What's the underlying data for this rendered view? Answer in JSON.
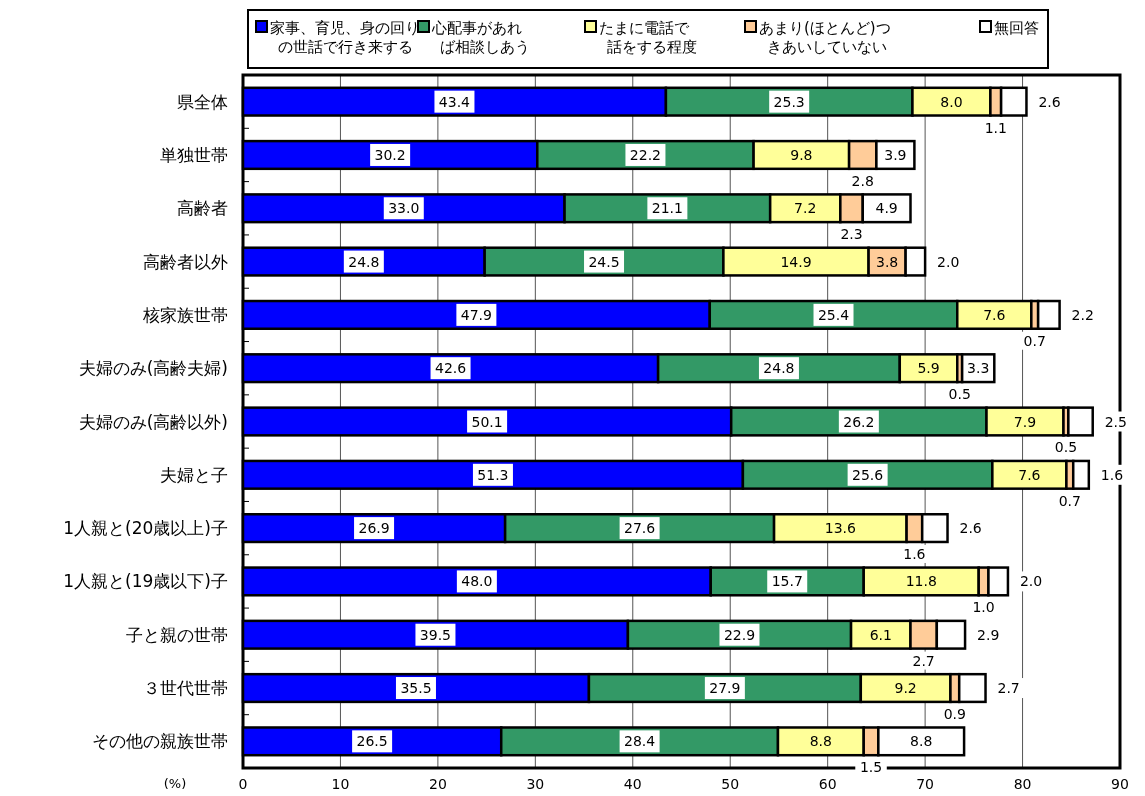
{
  "chart_data": {
    "type": "bar",
    "orientation": "horizontal",
    "stacked": true,
    "xlabel": "(%)",
    "categories": [
      "県全体",
      "単独世帯",
      "高齢者",
      "高齢者以外",
      "核家族世帯",
      "夫婦のみ(高齢夫婦)",
      "夫婦のみ(高齢以外)",
      "夫婦と子",
      "1人親と(20歳以上)子",
      "1人親と(19歳以下)子",
      "子と親の世帯",
      "３世代世帯",
      "その他の親族世帯"
    ],
    "series": [
      {
        "name": "家事、育児、身の回りの世話で行き来する",
        "color": "#0000ff",
        "values": [
          43.4,
          30.2,
          33.0,
          24.8,
          47.9,
          42.6,
          50.1,
          51.3,
          26.9,
          48.0,
          39.5,
          35.5,
          26.5
        ],
        "value_labels": [
          "43.4",
          "30.2",
          "33.0",
          "24.8",
          "47.9",
          "42.6",
          "50.1",
          "51.3",
          "26.9",
          "48.0",
          "39.5",
          "35.5",
          "26.5"
        ]
      },
      {
        "name": "心配事があれば相談しあう",
        "color": "#339966",
        "values": [
          25.3,
          22.2,
          21.1,
          24.5,
          25.4,
          24.8,
          26.2,
          25.6,
          27.6,
          15.7,
          22.9,
          27.9,
          28.4
        ],
        "value_labels": [
          "25.3",
          "22.2",
          "21.1",
          "24.5",
          "25.4",
          "24.8",
          "26.2",
          "25.6",
          "27.6",
          "15.7",
          "22.9",
          "27.9",
          "28.4"
        ]
      },
      {
        "name": "たまに電話で話をする程度",
        "color": "#ffff99",
        "values": [
          8.0,
          9.8,
          7.2,
          14.9,
          7.6,
          5.9,
          7.9,
          7.6,
          13.6,
          11.8,
          6.1,
          9.2,
          8.8
        ],
        "value_labels": [
          "8.0",
          "9.8",
          "7.2",
          "14.9",
          "7.6",
          "5.9",
          "7.9",
          "7.6",
          "13.6",
          "11.8",
          "6.1",
          "9.2",
          "8.8"
        ]
      },
      {
        "name": "あまり(ほとんど)つきあいしていない",
        "color": "#ffcc99",
        "values": [
          1.1,
          2.8,
          2.3,
          3.8,
          0.7,
          0.5,
          0.5,
          0.7,
          1.6,
          1.0,
          2.7,
          0.9,
          1.5
        ],
        "value_labels": [
          "1.1",
          "2.8",
          "2.3",
          "3.8",
          "0.7",
          "0.5",
          "0.5",
          "0.7",
          "1.6",
          "1.0",
          "2.7",
          "0.9",
          "1.5"
        ]
      },
      {
        "name": "無回答",
        "color": "#ffffff",
        "values": [
          2.6,
          3.9,
          4.9,
          2.0,
          2.2,
          3.3,
          2.5,
          1.6,
          2.6,
          2.0,
          2.9,
          2.7,
          8.8
        ],
        "value_labels": [
          "2.6",
          "3.9",
          "4.9",
          "2.0",
          "2.2",
          "3.3",
          "2.5",
          "1.6",
          "2.6",
          "2.0",
          "2.9",
          "2.7",
          "8.8"
        ]
      }
    ],
    "xlim": [
      0,
      90
    ],
    "xticks": [
      0,
      10,
      20,
      30,
      40,
      50,
      60,
      70,
      80,
      90
    ],
    "grid": "x",
    "legend": "top"
  }
}
